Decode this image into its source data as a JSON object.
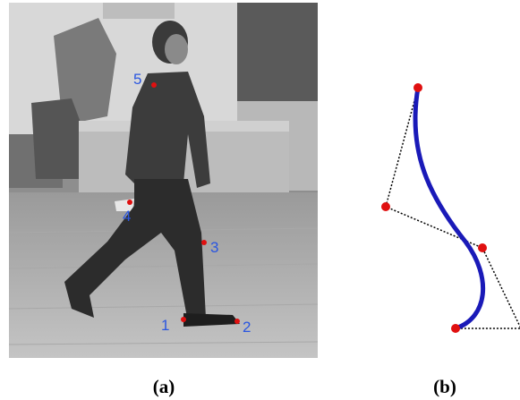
{
  "figure": {
    "panels": [
      {
        "caption": "(a)",
        "keypoints": [
          {
            "label": "1"
          },
          {
            "label": "2"
          },
          {
            "label": "3"
          },
          {
            "label": "4"
          },
          {
            "label": "5"
          }
        ]
      },
      {
        "caption": "(b)"
      }
    ]
  }
}
